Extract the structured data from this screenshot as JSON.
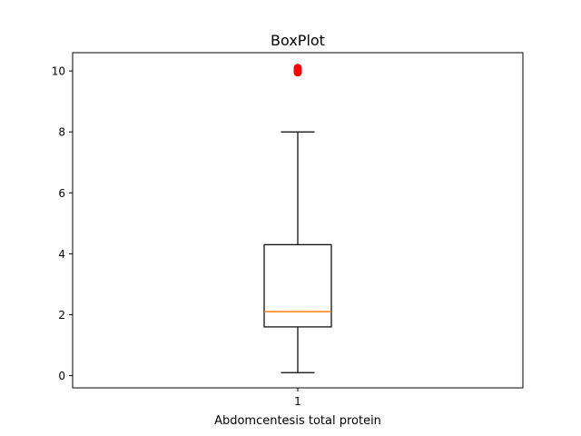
{
  "chart_data": {
    "type": "box",
    "title": "BoxPlot",
    "xlabel": "Abdomcentesis total protein",
    "ylabel": "",
    "categories": [
      "1"
    ],
    "ylim": [
      -0.4,
      10.6
    ],
    "yticks": [
      0,
      2,
      4,
      6,
      8,
      10
    ],
    "grid": false,
    "boxes": [
      {
        "category": "1",
        "whisker_low": 0.1,
        "q1": 1.6,
        "median": 2.1,
        "q3": 4.3,
        "whisker_high": 8.0,
        "outliers": [
          9.95,
          10.0,
          10.05,
          10.1
        ]
      }
    ],
    "colors": {
      "box": "#000000",
      "median": "#ff7f0e",
      "outlier": "#ff0000"
    }
  }
}
